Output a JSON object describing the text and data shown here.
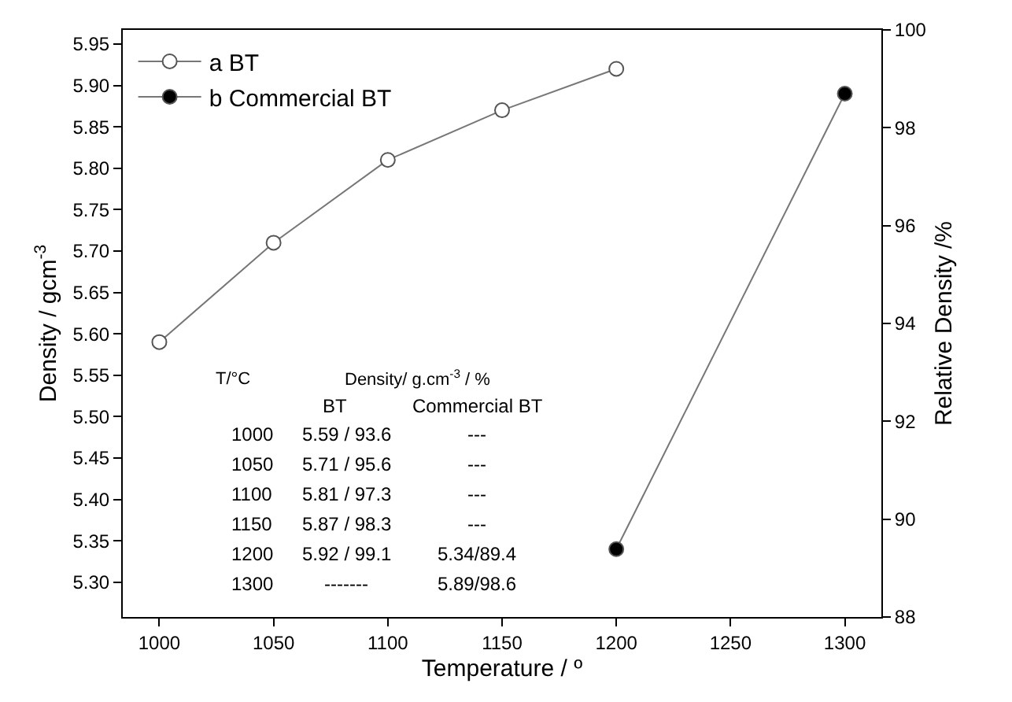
{
  "chart_data": {
    "type": "line",
    "xlabel": "Temperature / º",
    "ylabel": "Density / gcm$^{-3}$",
    "y2label": "Relative Density /%",
    "series": [
      {
        "name": "a BT",
        "color": "#ffffff",
        "x": [
          1000,
          1050,
          1100,
          1150,
          1200
        ],
        "values": [
          5.59,
          5.71,
          5.81,
          5.87,
          5.92
        ]
      },
      {
        "name": "b Commercial BT",
        "color": "#000000",
        "x": [
          1200,
          1300
        ],
        "values": [
          5.34,
          5.89
        ]
      }
    ],
    "xlim": [
      984,
      1316
    ],
    "xticks": [
      1000,
      1050,
      1100,
      1150,
      1200,
      1250,
      1300
    ],
    "ylim": [
      5.258,
      5.967
    ],
    "yticks": [
      {
        "value": 5.3,
        "label": "5.30"
      },
      {
        "value": 5.35,
        "label": "5.35"
      },
      {
        "value": 5.4,
        "label": "5.40"
      },
      {
        "value": 5.45,
        "label": "5.45"
      },
      {
        "value": 5.5,
        "label": "5.50"
      },
      {
        "value": 5.55,
        "label": "5.55"
      },
      {
        "value": 5.6,
        "label": "5.60"
      },
      {
        "value": 5.65,
        "label": "5.65"
      },
      {
        "value": 5.7,
        "label": "5.70"
      },
      {
        "value": 5.75,
        "label": "5.75"
      },
      {
        "value": 5.8,
        "label": "5.80"
      },
      {
        "value": 5.85,
        "label": "5.85"
      },
      {
        "value": 5.9,
        "label": "5.90"
      },
      {
        "value": 5.95,
        "label": "5.95"
      }
    ],
    "y2lim": [
      88,
      100
    ],
    "y2ticks": [
      88,
      90,
      92,
      94,
      96,
      98,
      100
    ],
    "marker": "circle",
    "line_style": "solid",
    "legend": "top left",
    "grid": false,
    "annotations": [
      "T/°C",
      "Density/ g.cm$^{-3}$ / %",
      "BT",
      "Commercial BT",
      "1000",
      "5.59 / 93.6",
      "---",
      "1050",
      "5.71 / 95.6",
      "---",
      "1100",
      "5.81 / 97.3",
      "---",
      "1150",
      "5.87 / 98.3",
      "---",
      "1200",
      "5.92 / 99.1",
      "5.34/89.4",
      "1300",
      "-------",
      "5.89/98.6"
    ]
  }
}
